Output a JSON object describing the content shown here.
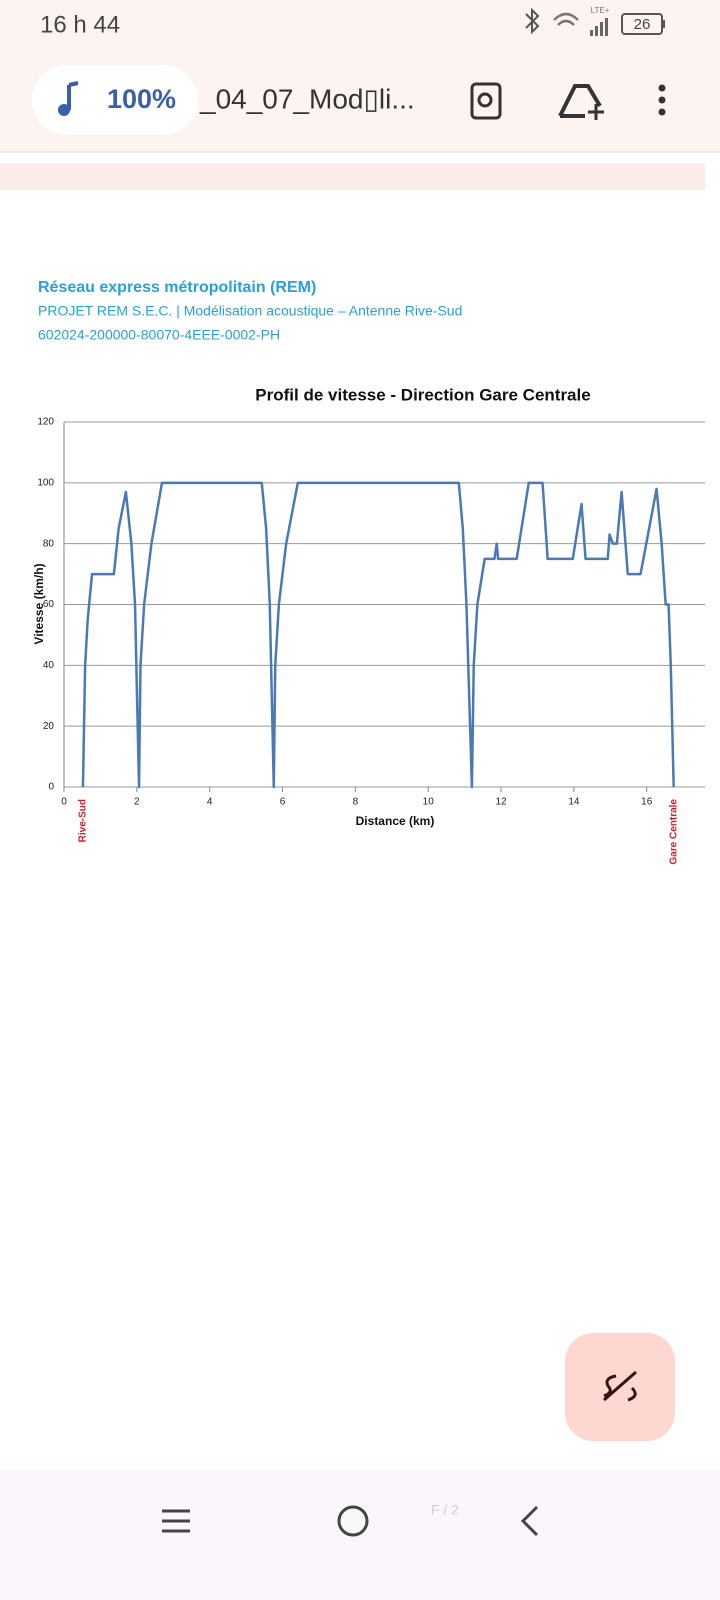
{
  "status_bar": {
    "time": "16 h 44",
    "network": "LTE+",
    "battery": "26"
  },
  "toolbar": {
    "zoom": "100%",
    "file_name": "_04_07_Mod▯li..."
  },
  "document": {
    "header": [
      "Réseau express métropolitain (REM)",
      "PROJET REM S.E.C. | Modélisation acoustique – Antenne Rive-Sud",
      "602024-200000-80070-4EEE-0002-PH"
    ]
  },
  "chart_data": {
    "type": "line",
    "title": "Profil de vitesse - Direction Gare Centrale",
    "x_label": "Distance (km)",
    "y_label": "Vitesse (km/h)",
    "x": [
      0.52,
      0.58,
      0.65,
      0.77,
      1.37,
      1.5,
      1.7,
      1.85,
      1.95,
      2.06,
      2.1,
      2.2,
      2.4,
      2.69,
      5.43,
      5.55,
      5.65,
      5.76,
      5.8,
      5.9,
      6.1,
      6.42,
      10.84,
      10.95,
      11.05,
      11.2,
      11.25,
      11.35,
      11.55,
      11.82,
      11.88,
      11.92,
      12.43,
      12.76,
      13.14,
      13.28,
      13.97,
      14.21,
      14.32,
      14.93,
      14.98,
      15.07,
      15.18,
      15.31,
      15.48,
      15.83,
      16.27,
      16.41,
      16.52,
      16.6,
      16.66,
      16.74
    ],
    "values": [
      0,
      40,
      55,
      70,
      70,
      85,
      97,
      80,
      60,
      0,
      40,
      60,
      80,
      100,
      100,
      85,
      60,
      0,
      40,
      60,
      80,
      100,
      100,
      85,
      60,
      0,
      40,
      60,
      75,
      75,
      80,
      75,
      75,
      100,
      100,
      75,
      75,
      93,
      75,
      75,
      83,
      80,
      80,
      97,
      70,
      70,
      98,
      80,
      60,
      60,
      40,
      0
    ],
    "color": "#4a7ab5",
    "xlim": [
      0,
      17.6
    ],
    "xticks": [
      0,
      2,
      4,
      6,
      8,
      10,
      12,
      14,
      16
    ],
    "ylim": [
      0,
      120
    ],
    "yticks": [
      0,
      20,
      40,
      60,
      80,
      100,
      120
    ],
    "grid": true,
    "annotations": [
      "Rive-Sud",
      "Gare Centrale"
    ]
  },
  "page_indicator": "F / 2"
}
